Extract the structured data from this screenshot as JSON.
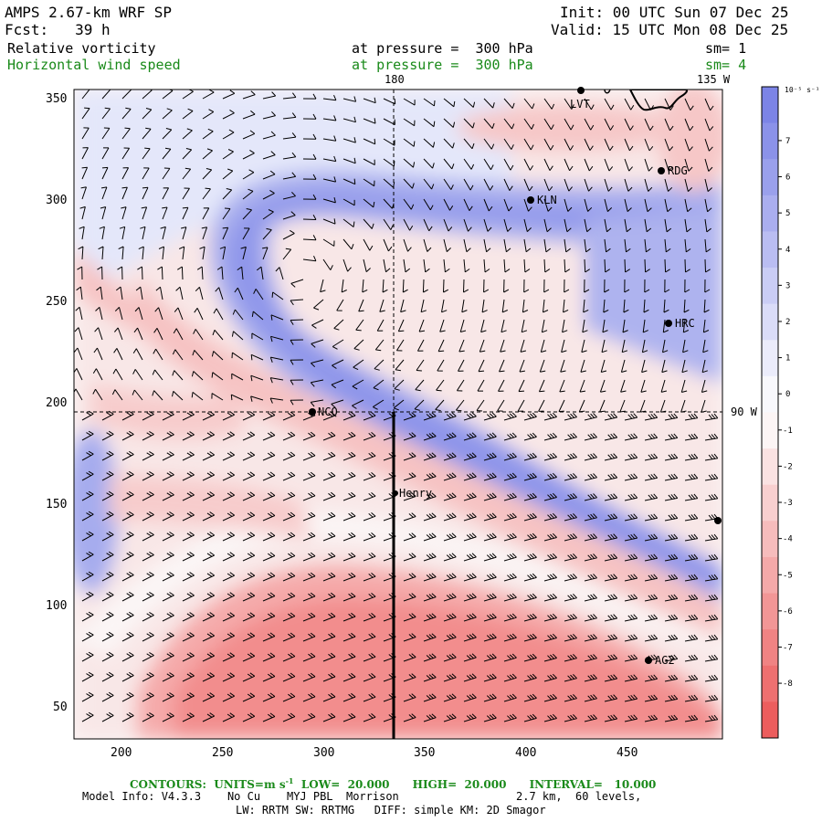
{
  "header": {
    "title": "AMPS 2.67-km WRF SP",
    "fcst_label": "Fcst:",
    "fcst_value": "39 h",
    "init": "Init: 00 UTC Sun 07 Dec 25",
    "valid": "Valid: 15 UTC Mon 08 Dec 25",
    "field1": "Relative vorticity",
    "field2": "Horizontal wind speed",
    "level1": "at pressure =  300 hPa",
    "level2": "at pressure =  300 hPa",
    "sm1": "sm= 1",
    "sm2": "sm= 4"
  },
  "map": {
    "lon_top_180": "180",
    "lon_top_135w": "135 W",
    "lon_right_90w": "90 W",
    "x_ticks": [
      "200",
      "250",
      "300",
      "350",
      "400",
      "450"
    ],
    "y_ticks": [
      "350",
      "300",
      "250",
      "200",
      "150",
      "100",
      "50"
    ],
    "stations": [
      {
        "name": "LVT"
      },
      {
        "name": "RDG"
      },
      {
        "name": "KLN"
      },
      {
        "name": "HRC"
      },
      {
        "name": "NCQ"
      },
      {
        "name": "Henry"
      },
      {
        "name": "AG2"
      },
      {
        "name": ""
      }
    ],
    "colors": {
      "positive": "#7f86e6",
      "negative": "#f0706c",
      "coast": "#000000"
    }
  },
  "colorbar": {
    "unit": "10⁻⁵ s⁻¹",
    "labels": [
      "7",
      "6",
      "5",
      "4",
      "3",
      "2",
      "1",
      "0",
      "-1",
      "-2",
      "-3",
      "-4",
      "-5",
      "-6",
      "-7",
      "-8"
    ]
  },
  "footer": {
    "contours": "CONTOURS:  UNITS=m s",
    "contours_exp": "-1",
    "low": "LOW=  20.000",
    "high": "HIGH=  20.000",
    "interval": "INTERVAL=   10.000",
    "model_info": "Model Info: V4.3.3    No Cu    MYJ PBL  Morrison",
    "grid_info": "2.7 km,  60 levels,",
    "physics": "LW: RRTM SW: RRTMG   DIFF: simple KM: 2D Smagor"
  }
}
